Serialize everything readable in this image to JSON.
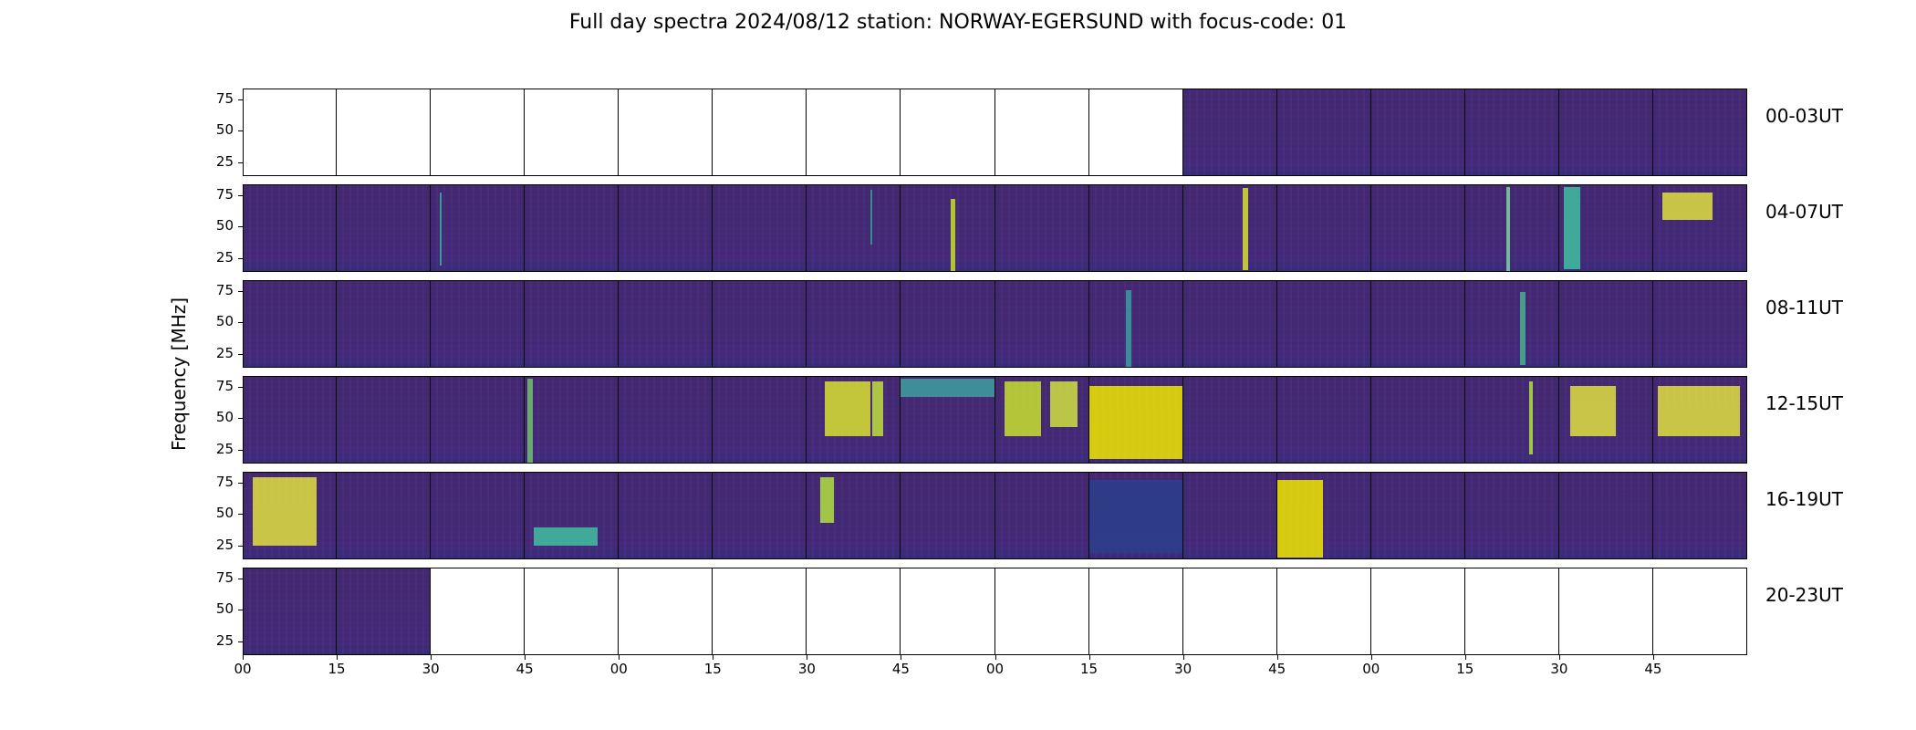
{
  "title": "Full day spectra 2024/08/12 station: NORWAY-EGERSUND with focus-code: 01",
  "chart_data": {
    "type": "heatmap",
    "colormap": "viridis",
    "ylabel": "Frequency [MHz]",
    "yticks": [
      "75",
      "50",
      "25"
    ],
    "xticks": [
      "00",
      "15",
      "30",
      "45",
      "00",
      "15",
      "30",
      "45",
      "00",
      "15",
      "30",
      "45",
      "00",
      "15",
      "30",
      "45"
    ],
    "rows": [
      {
        "label": "00-03UT",
        "data": [
          false,
          false,
          false,
          false,
          false,
          false,
          false,
          false,
          false,
          false,
          true,
          true,
          true,
          true,
          true,
          true
        ]
      },
      {
        "label": "04-07UT",
        "data": [
          true,
          true,
          true,
          true,
          true,
          true,
          true,
          true,
          true,
          true,
          true,
          true,
          true,
          true,
          true,
          true
        ]
      },
      {
        "label": "08-11UT",
        "data": [
          true,
          true,
          true,
          true,
          true,
          true,
          true,
          true,
          true,
          true,
          true,
          true,
          true,
          true,
          true,
          true
        ]
      },
      {
        "label": "12-15UT",
        "data": [
          true,
          true,
          true,
          true,
          true,
          true,
          true,
          true,
          true,
          true,
          true,
          true,
          true,
          true,
          true,
          true
        ]
      },
      {
        "label": "16-19UT",
        "data": [
          true,
          true,
          true,
          true,
          true,
          true,
          true,
          true,
          true,
          true,
          true,
          true,
          true,
          true,
          true,
          true
        ]
      },
      {
        "label": "20-23UT",
        "data": [
          true,
          true,
          false,
          false,
          false,
          false,
          false,
          false,
          false,
          false,
          false,
          false,
          false,
          false,
          false,
          false
        ]
      }
    ]
  }
}
